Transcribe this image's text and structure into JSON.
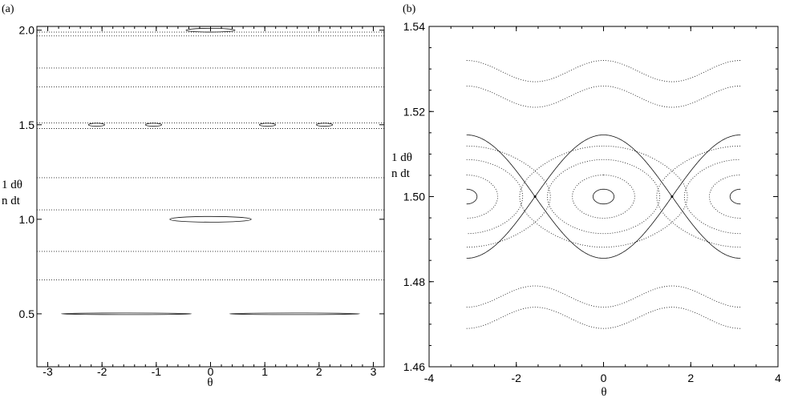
{
  "chart_data": [
    {
      "type": "scatter",
      "panel_label": "(a)",
      "xlabel": "θ",
      "ylabel_lines": [
        "1  dθ",
        "n  dt"
      ],
      "xlim": [
        -3.2,
        3.2
      ],
      "ylim": [
        0.22,
        2.02
      ],
      "xticks": [
        -3,
        -2,
        -1,
        0,
        1,
        2,
        3
      ],
      "xtick_labels": [
        "-3",
        "-2",
        "-1",
        "0",
        "1",
        "2",
        "3"
      ],
      "yticks": [
        0.5,
        1.0,
        1.5,
        2.0
      ],
      "ytick_labels": [
        "0.5",
        "1.0",
        "1.5",
        "2.0"
      ],
      "invariant_curve_levels": [
        1.99,
        1.97,
        1.8,
        1.7,
        1.51,
        1.48,
        1.22,
        1.05,
        0.83,
        0.68
      ],
      "islands": [
        {
          "center_theta": 0.0,
          "level": 2.0,
          "half_width": 0.45,
          "half_height": 0.01
        },
        {
          "center_theta": -2.1,
          "level": 1.5,
          "half_width": 0.15,
          "half_height": 0.008
        },
        {
          "center_theta": -1.05,
          "level": 1.5,
          "half_width": 0.15,
          "half_height": 0.008
        },
        {
          "center_theta": 1.05,
          "level": 1.5,
          "half_width": 0.15,
          "half_height": 0.008
        },
        {
          "center_theta": 2.1,
          "level": 1.5,
          "half_width": 0.15,
          "half_height": 0.008
        },
        {
          "center_theta": 0.0,
          "level": 1.0,
          "half_width": 0.75,
          "half_height": 0.015
        },
        {
          "center_theta": -1.55,
          "level": 0.5,
          "half_width": 1.2,
          "half_height": 0.004
        },
        {
          "center_theta": 1.55,
          "level": 0.5,
          "half_width": 1.2,
          "half_height": 0.004
        }
      ]
    },
    {
      "type": "scatter",
      "panel_label": "(b)",
      "xlabel": "θ",
      "ylabel_lines": [
        "1  dθ",
        "n  dt"
      ],
      "xlim": [
        -4,
        4
      ],
      "ylim": [
        1.46,
        1.54
      ],
      "xticks": [
        -4,
        -2,
        0,
        2,
        4
      ],
      "xtick_labels": [
        "-4",
        "-2",
        "0",
        "2",
        "4"
      ],
      "yticks": [
        1.46,
        1.48,
        1.5,
        1.52,
        1.54
      ],
      "ytick_labels": [
        "1.46",
        "1.48",
        "1.50",
        "1.52",
        "1.54"
      ],
      "rotational_curves": [
        {
          "mean": 1.5295,
          "amplitude": 0.0025
        },
        {
          "mean": 1.5235,
          "amplitude": 0.0025
        },
        {
          "mean": 1.4765,
          "amplitude": -0.0025
        },
        {
          "mean": 1.4715,
          "amplitude": -0.0025
        }
      ],
      "separatrix_width": 0.0145,
      "libration_levels": [
        0.12,
        0.35,
        0.6,
        0.82
      ],
      "island_centers_theta": [
        -3.1416,
        0.0,
        3.1416
      ],
      "x_points_theta": [
        -1.5708,
        1.5708
      ]
    }
  ]
}
